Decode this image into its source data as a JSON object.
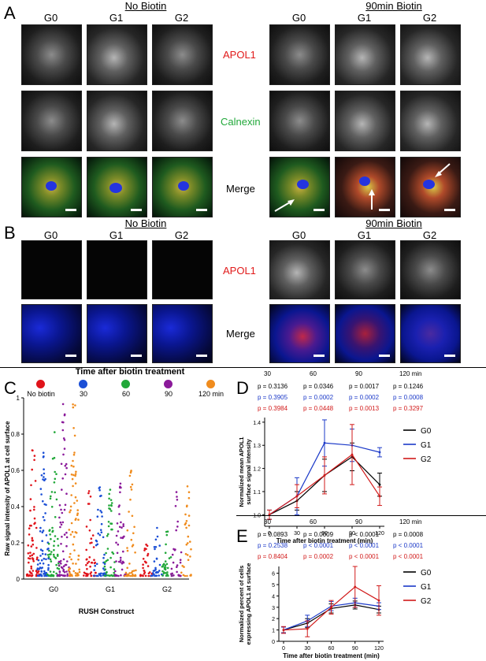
{
  "panelA": {
    "letter": "A",
    "group_no": "No Biotin",
    "group_bio": "90min Biotin",
    "cols": [
      "G0",
      "G1",
      "G2"
    ],
    "rows": [
      "APOL1",
      "Calnexin",
      "Merge"
    ]
  },
  "panelB": {
    "letter": "B",
    "group_no": "No Biotin",
    "group_bio": "90min Biotin",
    "cols": [
      "G0",
      "G1",
      "G2"
    ],
    "rows": [
      "APOL1",
      "Merge"
    ]
  },
  "panelC": {
    "letter": "C",
    "title": "Time after biotin treatment",
    "legend": [
      {
        "label": "No biotin",
        "color": "#e0131a"
      },
      {
        "label": "30",
        "color": "#1b4fd6"
      },
      {
        "label": "60",
        "color": "#22a83a"
      },
      {
        "label": "90",
        "color": "#8b1a9a"
      },
      {
        "label": "120 min",
        "color": "#f08c1e"
      }
    ],
    "ylabel": "Raw signal intensity of APOL1 at cell surface",
    "xlabel": "RUSH Construct",
    "groups": [
      "G0",
      "G1",
      "G2"
    ],
    "yticks": [
      "0",
      "0.2",
      "0.4",
      "0.6",
      "0.8",
      "1"
    ]
  },
  "panelD": {
    "letter": "D",
    "pheader": [
      "30",
      "60",
      "90",
      "120 min"
    ],
    "prows": [
      {
        "color": "#000000",
        "vals": [
          "p = 0.3136",
          "p = 0.0346",
          "p = 0.0017",
          "p = 0.1246"
        ]
      },
      {
        "color": "#1b39c8",
        "vals": [
          "p = 0.3905",
          "p = 0.0002",
          "p = 0.0002",
          "p = 0.0008"
        ]
      },
      {
        "color": "#d11a1a",
        "vals": [
          "p = 0.3984",
          "p = 0.0448",
          "p = 0.0013",
          "p = 0.3297"
        ]
      }
    ],
    "ylabel": "Normalized mean APOL1 surface signal intensity",
    "xlabel": "Time after biotin treatment (min)",
    "legend": [
      "G0",
      "G1",
      "G2"
    ],
    "yticks": [
      "1.0",
      "1.1",
      "1.2",
      "1.3",
      "1.4"
    ],
    "xticks": [
      "0",
      "30",
      "60",
      "90",
      "120"
    ]
  },
  "panelE": {
    "letter": "E",
    "pheader": [
      "30",
      "60",
      "90",
      "120 min"
    ],
    "prows": [
      {
        "color": "#000000",
        "vals": [
          "p = 0.0893",
          "p = 0.0009",
          "p < 0.0001",
          "p = 0.0008"
        ]
      },
      {
        "color": "#1b39c8",
        "vals": [
          "p = 0.2538",
          "p < 0.0001",
          "p < 0.0001",
          "p < 0.0001"
        ]
      },
      {
        "color": "#d11a1a",
        "vals": [
          "p = 0.8404",
          "p = 0.0002",
          "p < 0.0001",
          "p < 0.0001"
        ]
      }
    ],
    "ylabel": "Normalized percent of cells expressing APOL1 at surface",
    "xlabel": "Time after biotin treatment (min)",
    "legend": [
      "G0",
      "G1",
      "G2"
    ],
    "yticks": [
      "0",
      "1",
      "2",
      "3",
      "4",
      "5",
      "6"
    ],
    "xticks": [
      "0",
      "30",
      "60",
      "90",
      "120"
    ]
  },
  "chart_data": [
    {
      "type": "line",
      "x": [
        0,
        30,
        60,
        90,
        120
      ],
      "xlabel": "Time after biotin treatment (min)",
      "ylabel": "Normalized mean APOL1 surface signal intensity",
      "ylim": [
        0.95,
        1.42
      ],
      "series": [
        {
          "name": "G0",
          "color": "#000000",
          "values": [
            1.0,
            1.06,
            1.17,
            1.25,
            1.13
          ],
          "err": [
            0.02,
            0.04,
            0.07,
            0.06,
            0.05
          ]
        },
        {
          "name": "G1",
          "color": "#1b39c8",
          "values": [
            1.0,
            1.08,
            1.31,
            1.3,
            1.27
          ],
          "err": [
            0.02,
            0.08,
            0.1,
            0.07,
            0.02
          ]
        },
        {
          "name": "G2",
          "color": "#d11a1a",
          "values": [
            1.0,
            1.08,
            1.17,
            1.26,
            1.08
          ],
          "err": [
            0.02,
            0.05,
            0.08,
            0.13,
            0.04
          ]
        }
      ]
    },
    {
      "type": "line",
      "x": [
        0,
        30,
        60,
        90,
        120
      ],
      "xlabel": "Time after biotin treatment (min)",
      "ylabel": "Normalized percent of cells expressing APOL1 at surface",
      "ylim": [
        0,
        6.6
      ],
      "series": [
        {
          "name": "G0",
          "color": "#000000",
          "values": [
            1.0,
            1.6,
            2.9,
            3.2,
            2.8
          ],
          "err": [
            0.25,
            0.4,
            0.4,
            0.35,
            0.3
          ]
        },
        {
          "name": "G1",
          "color": "#1b39c8",
          "values": [
            1.0,
            1.8,
            3.1,
            3.4,
            3.1
          ],
          "err": [
            0.25,
            0.5,
            0.4,
            0.4,
            0.3
          ]
        },
        {
          "name": "G2",
          "color": "#d11a1a",
          "values": [
            1.0,
            1.1,
            3.0,
            4.8,
            3.6
          ],
          "err": [
            0.3,
            0.7,
            0.6,
            1.8,
            1.3
          ]
        }
      ]
    }
  ]
}
